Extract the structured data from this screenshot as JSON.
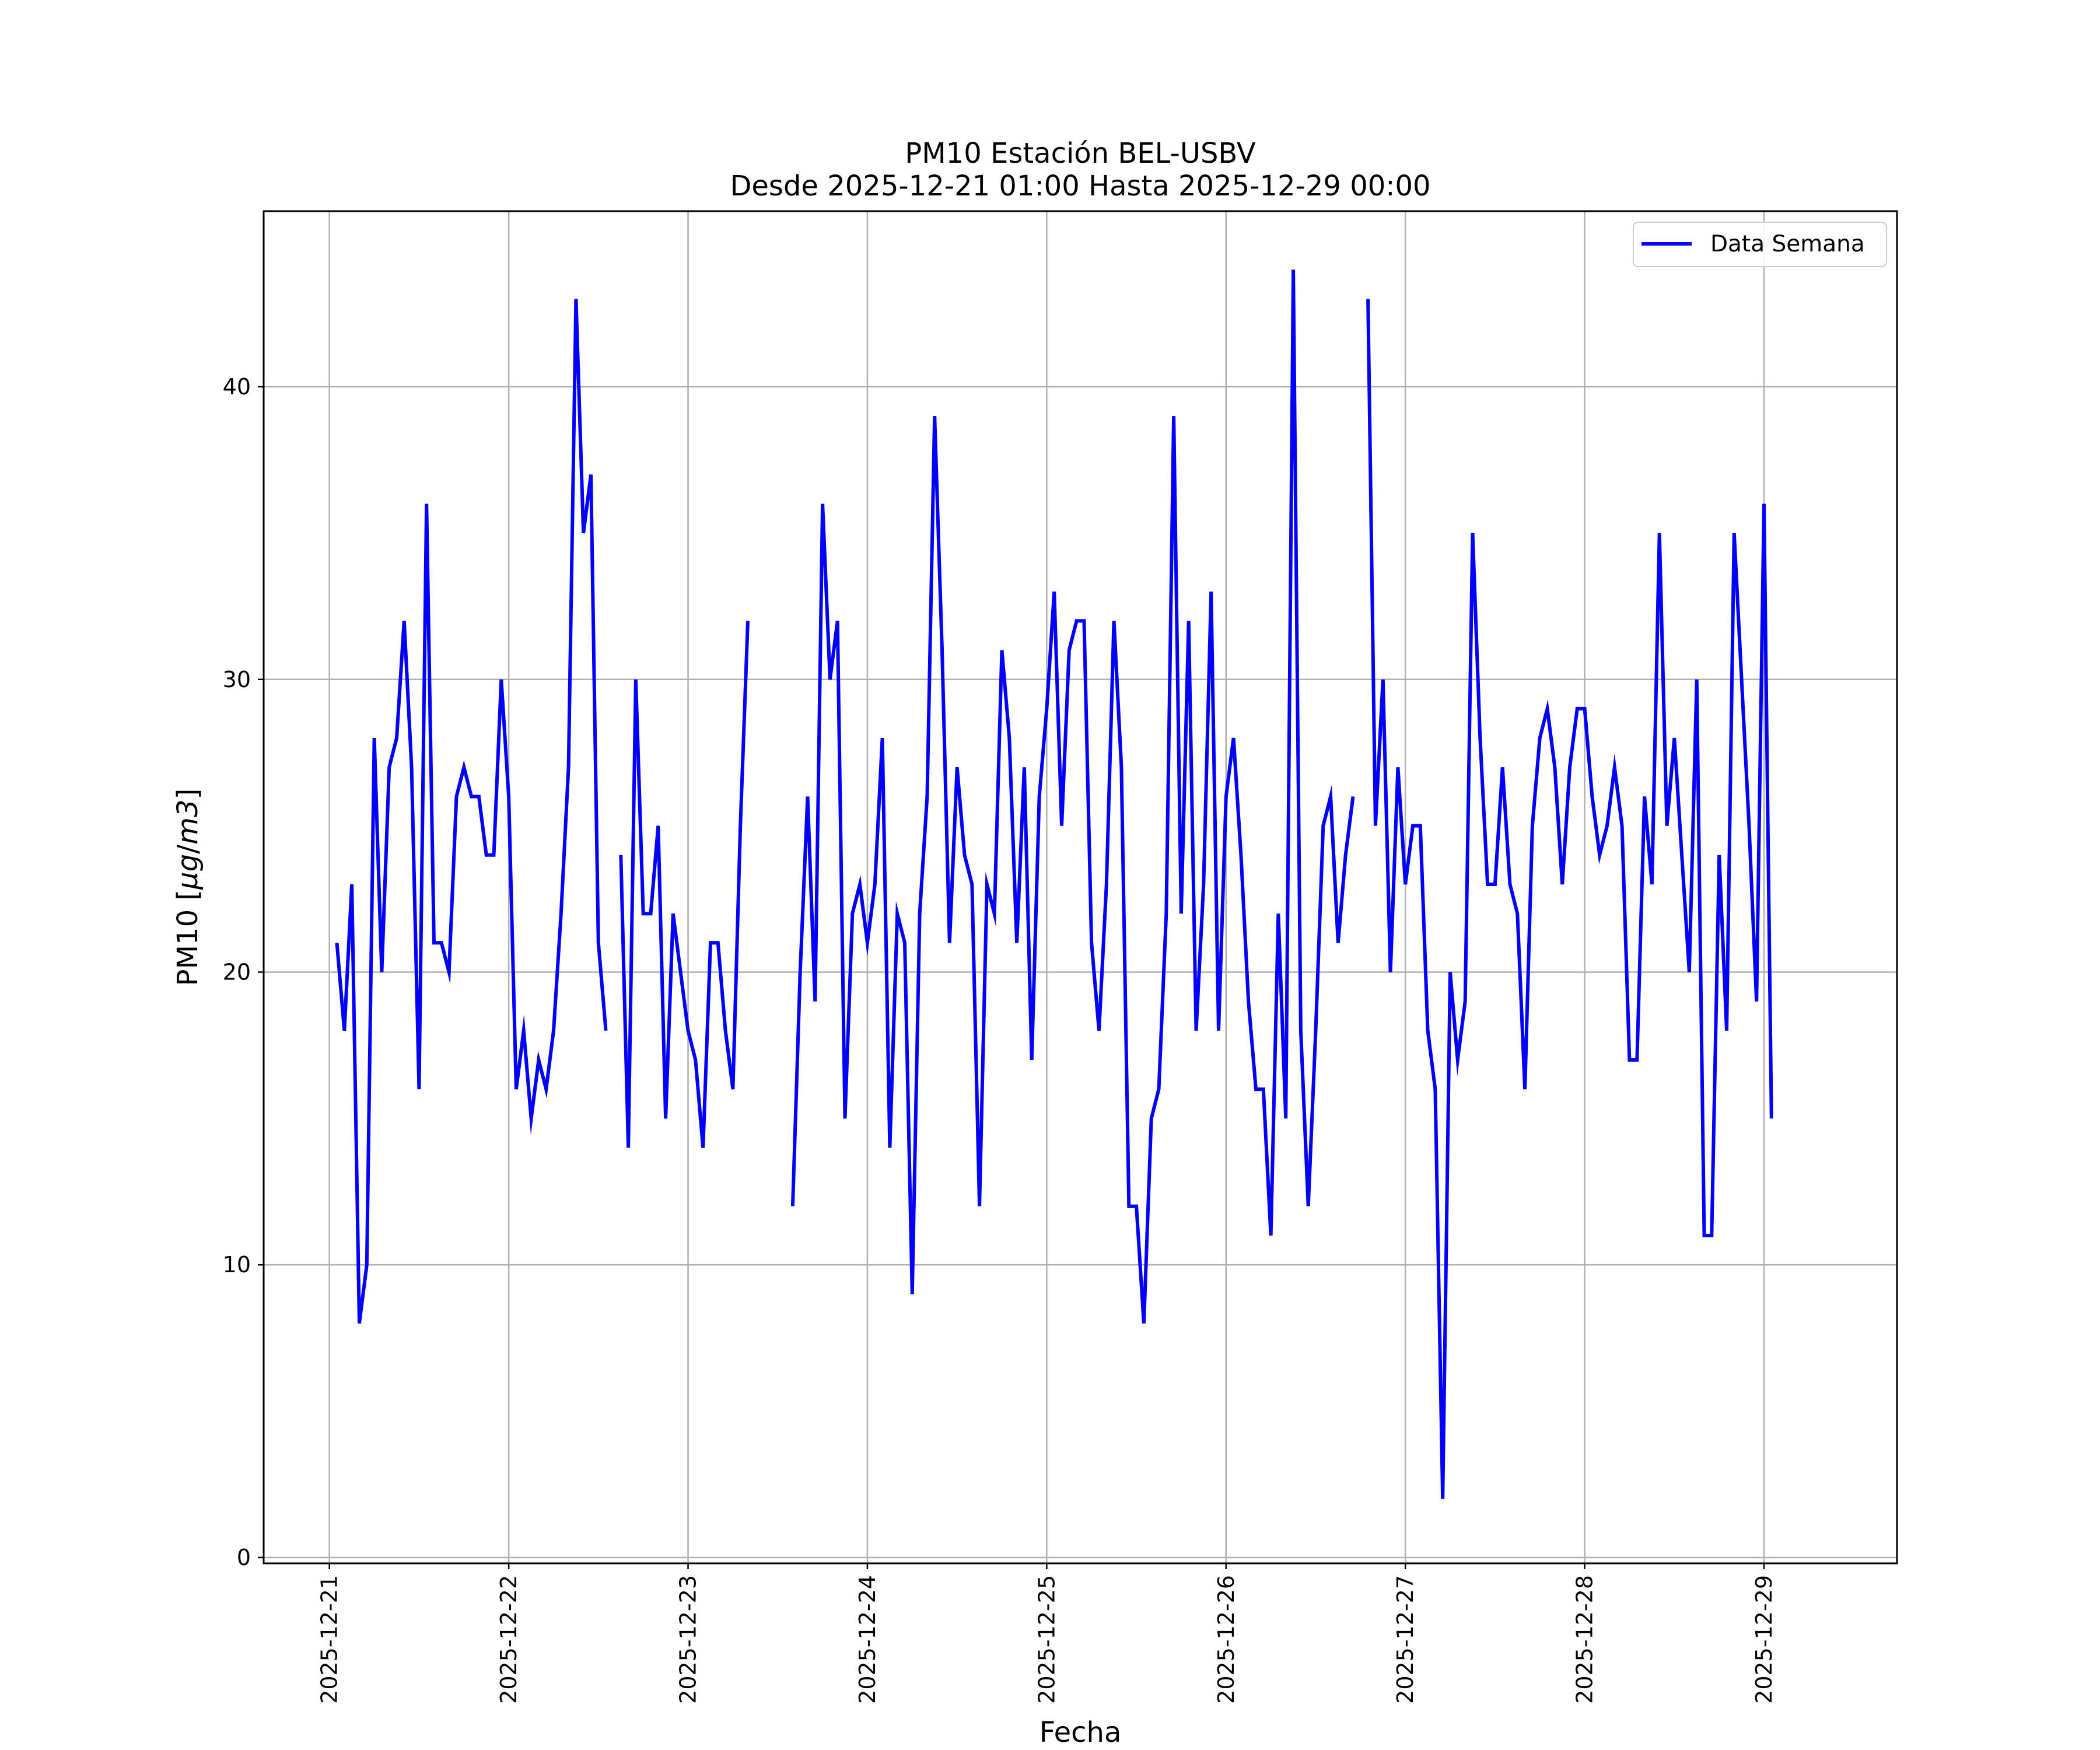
{
  "chart_data": {
    "type": "line",
    "title": "PM10 Estación BEL-USBV",
    "subtitle": "Desde 2025-12-21 01:00 Hasta 2025-12-29 00:00",
    "xlabel": "Fecha",
    "ylabel": "PM10 [μg/m3]",
    "ylabel_parts": [
      "PM10 [",
      "μg",
      "/",
      "m3",
      "]"
    ],
    "grid": true,
    "legend_position": "top-right",
    "x_unit": "hours since 2025-12-21 00:00",
    "xlim": [
      -8.8,
      209.8
    ],
    "ylim": [
      -0.2,
      46.0
    ],
    "x_ticks": [
      {
        "value": 0,
        "label": "2025-12-21"
      },
      {
        "value": 24,
        "label": "2025-12-22"
      },
      {
        "value": 48,
        "label": "2025-12-23"
      },
      {
        "value": 72,
        "label": "2025-12-24"
      },
      {
        "value": 96,
        "label": "2025-12-25"
      },
      {
        "value": 120,
        "label": "2025-12-26"
      },
      {
        "value": 144,
        "label": "2025-12-27"
      },
      {
        "value": 168,
        "label": "2025-12-28"
      },
      {
        "value": 192,
        "label": "2025-12-29"
      }
    ],
    "y_ticks": [
      {
        "value": 0,
        "label": "0"
      },
      {
        "value": 10,
        "label": "10"
      },
      {
        "value": 20,
        "label": "20"
      },
      {
        "value": 30,
        "label": "30"
      },
      {
        "value": 40,
        "label": "40"
      }
    ],
    "series": [
      {
        "name": "Data Semana",
        "color": "#0000ff",
        "x_start": 1,
        "x_step": 1,
        "values": [
          21,
          18,
          23,
          8,
          10,
          28,
          20,
          27,
          28,
          32,
          27,
          16,
          36,
          21,
          21,
          20,
          26,
          27,
          26,
          26,
          24,
          24,
          30,
          26,
          16,
          18,
          15,
          17,
          16,
          18,
          22,
          27,
          43,
          35,
          37,
          21,
          18,
          null,
          24,
          14,
          30,
          22,
          22,
          25,
          15,
          22,
          20,
          18,
          17,
          14,
          21,
          21,
          18,
          16,
          25,
          32,
          null,
          null,
          null,
          null,
          null,
          12,
          20,
          26,
          19,
          36,
          30,
          32,
          15,
          22,
          23,
          21,
          23,
          28,
          14,
          22,
          21,
          9,
          22,
          26,
          39,
          31,
          21,
          27,
          24,
          23,
          12,
          23,
          22,
          31,
          28,
          21,
          27,
          17,
          26,
          29,
          33,
          25,
          31,
          32,
          32,
          21,
          18,
          23,
          32,
          27,
          12,
          12,
          8,
          15,
          16,
          22,
          39,
          22,
          32,
          18,
          23,
          33,
          18,
          26,
          28,
          24,
          19,
          16,
          16,
          11,
          22,
          15,
          44,
          18,
          12,
          18,
          25,
          26,
          21,
          24,
          26,
          null,
          43,
          25,
          30,
          20,
          27,
          23,
          25,
          25,
          18,
          16,
          2,
          20,
          17,
          19,
          35,
          28,
          23,
          23,
          27,
          23,
          22,
          16,
          25,
          28,
          29,
          27,
          23,
          27,
          29,
          29,
          26,
          24,
          25,
          27,
          25,
          17,
          17,
          26,
          23,
          35,
          25,
          28,
          24,
          20,
          30,
          11,
          11,
          24,
          18,
          35,
          30,
          25,
          19,
          36,
          15
        ]
      }
    ]
  }
}
